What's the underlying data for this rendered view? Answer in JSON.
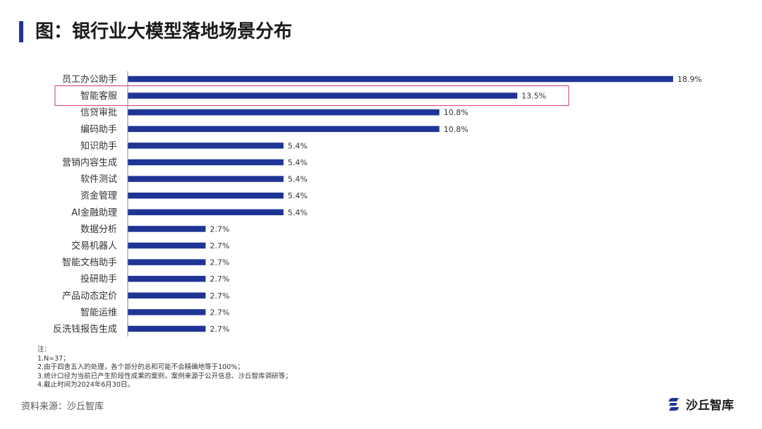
{
  "title": "图：银行业大模型落地场景分布",
  "chart_data": {
    "type": "bar",
    "orientation": "horizontal",
    "categories": [
      "员工办公助手",
      "智能客服",
      "信贷审批",
      "编码助手",
      "知识助手",
      "营销内容生成",
      "软件测试",
      "资金管理",
      "AI金融助理",
      "数据分析",
      "交易机器人",
      "智能文档助手",
      "投研助手",
      "产品动态定价",
      "智能运维",
      "反洗钱报告生成"
    ],
    "values": [
      18.9,
      13.5,
      10.8,
      10.8,
      5.4,
      5.4,
      5.4,
      5.4,
      5.4,
      2.7,
      2.7,
      2.7,
      2.7,
      2.7,
      2.7,
      2.7
    ],
    "value_labels": [
      "18.9%",
      "13.5%",
      "10.8%",
      "10.8%",
      "5.4%",
      "5.4%",
      "5.4%",
      "5.4%",
      "5.4%",
      "2.7%",
      "2.7%",
      "2.7%",
      "2.7%",
      "2.7%",
      "2.7%",
      "2.7%"
    ],
    "highlighted_category": "智能客服",
    "bar_color": "#1f3596",
    "highlight_color": "#d6336c",
    "xlim": [
      0,
      18.9
    ],
    "grid": false
  },
  "notes": {
    "heading": "注：",
    "items": [
      "1.N=37；",
      "2.由于四舍五入的处理，各个部分的总和可能不会精确地等于100%；",
      "3.统计口径为当前已产生阶段性成果的案例，案例来源于公开信息、沙丘智库调研等；",
      "4.截止时间为2024年6月30日。"
    ]
  },
  "source": "资料来源：沙丘智库",
  "brand": {
    "name": "沙丘智库",
    "logo_icon": "dune-logo-icon",
    "color": "#1f3596"
  }
}
